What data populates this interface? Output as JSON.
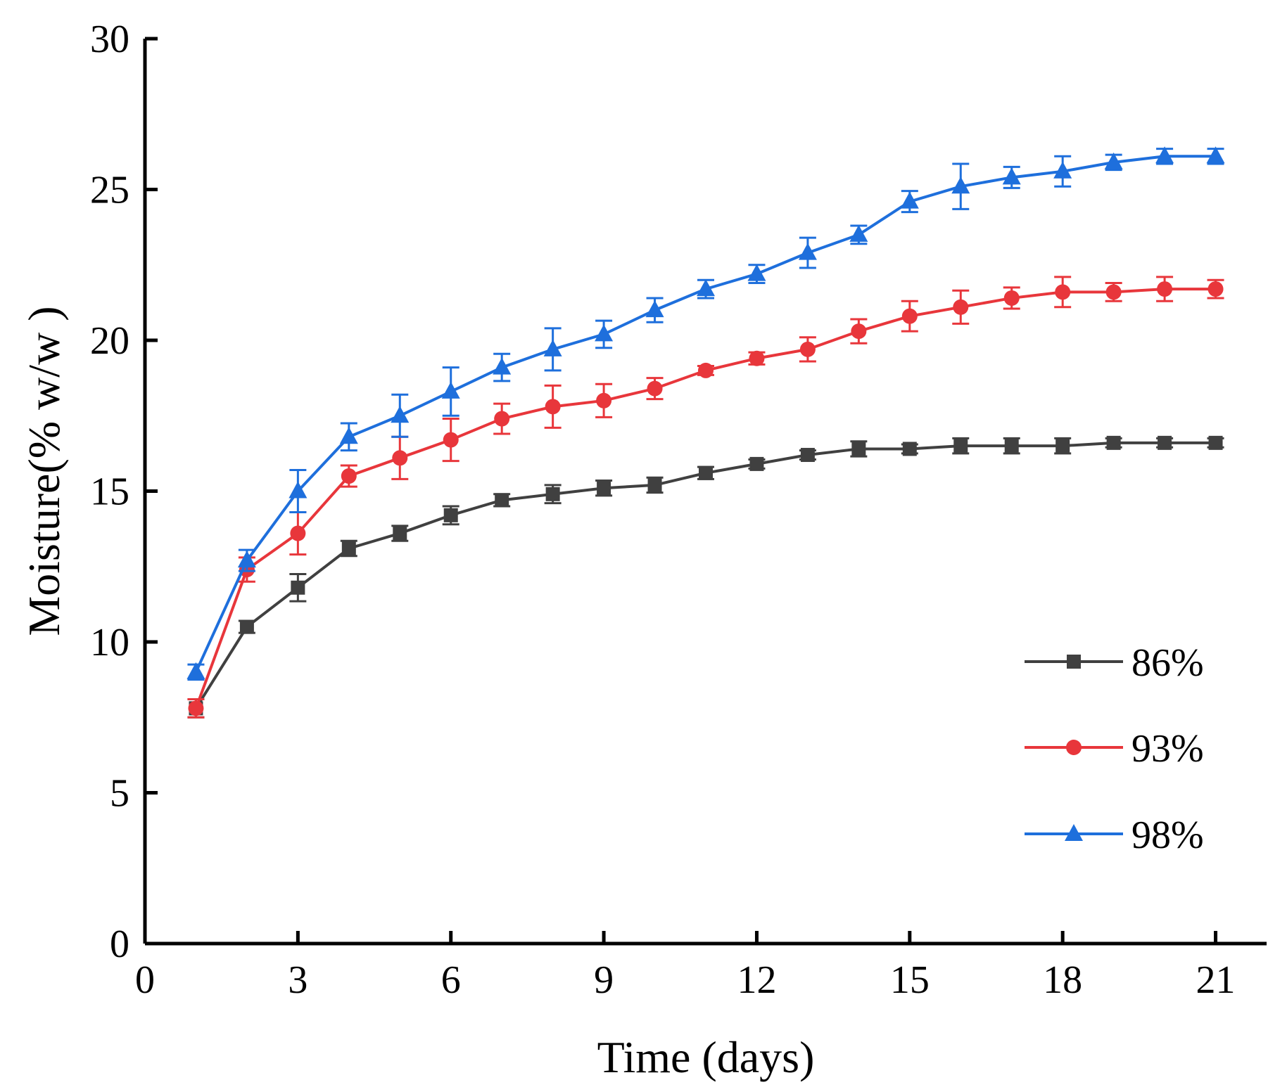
{
  "chart_data": {
    "type": "line",
    "title": "",
    "xlabel": "Time (days)",
    "ylabel": "Moisture(% w/w )",
    "xlim": [
      0,
      22
    ],
    "ylim": [
      0,
      30
    ],
    "xticks": [
      0,
      3,
      6,
      9,
      12,
      15,
      18,
      21
    ],
    "yticks": [
      0,
      5,
      10,
      15,
      20,
      25,
      30
    ],
    "grid": false,
    "legend_position": "right",
    "x": [
      1,
      2,
      3,
      4,
      5,
      6,
      7,
      8,
      9,
      10,
      11,
      12,
      13,
      14,
      15,
      16,
      17,
      18,
      19,
      20,
      21
    ],
    "series": [
      {
        "name": "86%",
        "color": "#404040",
        "marker": "square",
        "values": [
          7.8,
          10.5,
          11.8,
          13.1,
          13.6,
          14.2,
          14.7,
          14.9,
          15.1,
          15.2,
          15.6,
          15.9,
          16.2,
          16.4,
          16.4,
          16.5,
          16.5,
          16.5,
          16.6,
          16.6,
          16.6
        ],
        "errors": [
          0.3,
          0.2,
          0.45,
          0.25,
          0.25,
          0.3,
          0.2,
          0.3,
          0.25,
          0.25,
          0.2,
          0.15,
          0.15,
          0.25,
          0.15,
          0.25,
          0.25,
          0.25,
          0.15,
          0.15,
          0.15
        ]
      },
      {
        "name": "93%",
        "color": "#e8363b",
        "marker": "circle",
        "values": [
          7.8,
          12.4,
          13.6,
          15.5,
          16.1,
          16.7,
          17.4,
          17.8,
          18.0,
          18.4,
          19.0,
          19.4,
          19.7,
          20.3,
          20.8,
          21.1,
          21.4,
          21.6,
          21.6,
          21.7,
          21.7
        ],
        "errors": [
          0.3,
          0.4,
          0.7,
          0.35,
          0.7,
          0.7,
          0.5,
          0.7,
          0.55,
          0.35,
          0.15,
          0.2,
          0.4,
          0.4,
          0.5,
          0.55,
          0.35,
          0.5,
          0.3,
          0.4,
          0.3
        ]
      },
      {
        "name": "98%",
        "color": "#1e6fdc",
        "marker": "triangle",
        "values": [
          9.0,
          12.7,
          15.0,
          16.8,
          17.5,
          18.3,
          19.1,
          19.7,
          20.2,
          21.0,
          21.7,
          22.2,
          22.9,
          23.5,
          24.6,
          25.1,
          25.4,
          25.6,
          25.9,
          26.1,
          26.1
        ],
        "errors": [
          0.25,
          0.35,
          0.7,
          0.45,
          0.7,
          0.8,
          0.45,
          0.7,
          0.45,
          0.4,
          0.3,
          0.3,
          0.5,
          0.3,
          0.35,
          0.75,
          0.35,
          0.5,
          0.25,
          0.25,
          0.25
        ]
      }
    ]
  }
}
